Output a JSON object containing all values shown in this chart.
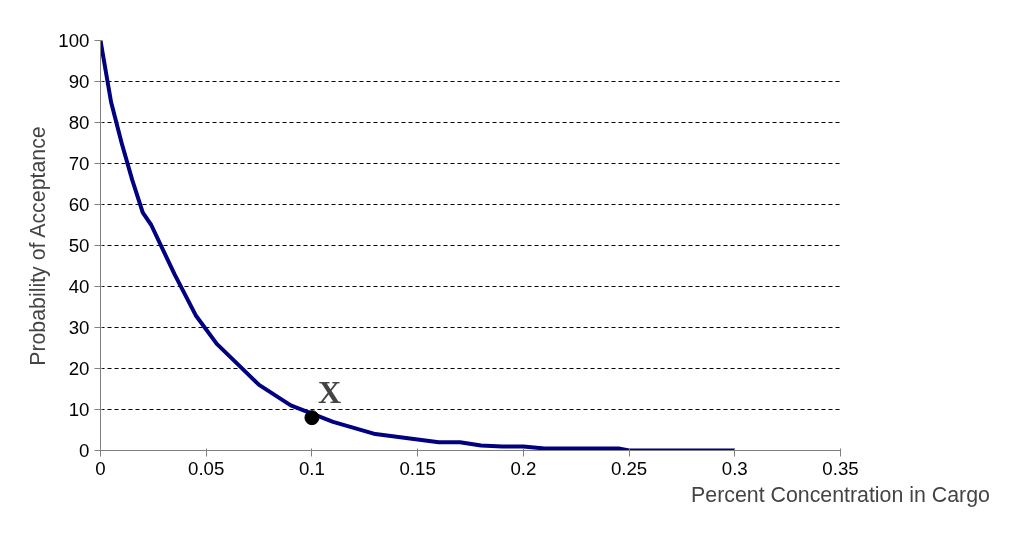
{
  "chart_data": {
    "type": "line",
    "xlabel": "Percent Concentration in Cargo",
    "ylabel": "Probability of Acceptance",
    "xlim": [
      0,
      0.35
    ],
    "ylim": [
      0,
      100
    ],
    "xticks": [
      0,
      0.05,
      0.1,
      0.15,
      0.2,
      0.25,
      0.3,
      0.35
    ],
    "yticks": [
      0,
      10,
      20,
      30,
      40,
      50,
      60,
      70,
      80,
      90,
      100
    ],
    "grid": "y",
    "line_style": "solid",
    "series": [
      {
        "color": "#000080",
        "x": [
          0,
          0.005,
          0.01,
          0.015,
          0.02,
          0.024,
          0.035,
          0.045,
          0.055,
          0.065,
          0.075,
          0.09,
          0.1,
          0.11,
          0.13,
          0.16,
          0.17,
          0.18,
          0.19,
          0.2,
          0.21,
          0.245,
          0.25,
          0.3
        ],
        "values": [
          100,
          85,
          75,
          66,
          58,
          55,
          43,
          33,
          26,
          21,
          16,
          11,
          9,
          7,
          4,
          2,
          2,
          1.2,
          1,
          1,
          0.5,
          0.5,
          0,
          0
        ]
      },
      {
        "type": "scatter",
        "color": "#000000",
        "x": [
          0.1
        ],
        "values": [
          8
        ],
        "marker": "circle"
      }
    ],
    "annotations": [
      {
        "text": "X",
        "x": 0.1,
        "y": 8
      }
    ]
  }
}
